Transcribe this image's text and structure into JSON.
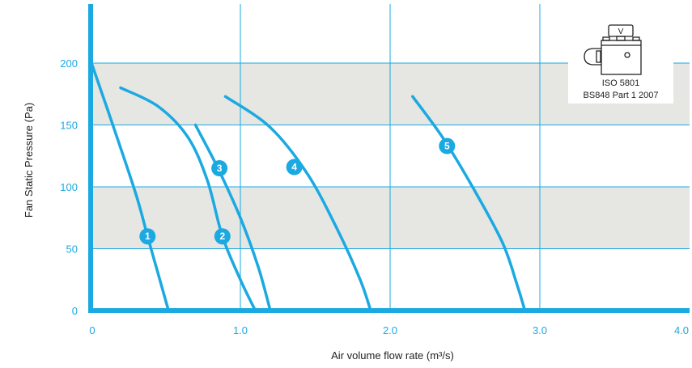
{
  "chart_data": {
    "type": "line",
    "xlabel": "Air volume flow rate (m³/s)",
    "ylabel": "Fan Static Pressure (Pa)",
    "xlim": [
      0,
      4.0
    ],
    "ylim": [
      0,
      250
    ],
    "x_ticks": [
      "0",
      "1.0",
      "2.0",
      "3.0",
      "4.0"
    ],
    "y_ticks": [
      "0",
      "50",
      "100",
      "150",
      "200"
    ],
    "shaded_bands": [
      [
        50,
        100
      ],
      [
        150,
        200
      ]
    ],
    "grid": true,
    "series": [
      {
        "name": "1",
        "points": [
          [
            0.0,
            202
          ],
          [
            0.12,
            160
          ],
          [
            0.3,
            95
          ],
          [
            0.38,
            60
          ],
          [
            0.45,
            30
          ],
          [
            0.52,
            0
          ]
        ],
        "label_at": [
          0.38,
          60
        ]
      },
      {
        "name": "2",
        "points": [
          [
            0.2,
            180
          ],
          [
            0.45,
            165
          ],
          [
            0.65,
            140
          ],
          [
            0.78,
            105
          ],
          [
            0.88,
            60
          ],
          [
            1.0,
            25
          ],
          [
            1.1,
            0
          ]
        ],
        "label_at": [
          0.88,
          60
        ]
      },
      {
        "name": "3",
        "points": [
          [
            0.7,
            150
          ],
          [
            0.85,
            115
          ],
          [
            1.0,
            75
          ],
          [
            1.12,
            35
          ],
          [
            1.2,
            0
          ]
        ],
        "label_at": [
          0.86,
          115
        ]
      },
      {
        "name": "4",
        "points": [
          [
            0.9,
            173
          ],
          [
            1.2,
            148
          ],
          [
            1.45,
            110
          ],
          [
            1.65,
            65
          ],
          [
            1.8,
            25
          ],
          [
            1.87,
            0
          ]
        ],
        "label_at": [
          1.36,
          116
        ]
      },
      {
        "name": "5",
        "points": [
          [
            2.15,
            173
          ],
          [
            2.35,
            140
          ],
          [
            2.55,
            100
          ],
          [
            2.75,
            55
          ],
          [
            2.85,
            20
          ],
          [
            2.9,
            0
          ]
        ],
        "label_at": [
          2.38,
          133
        ]
      }
    ]
  },
  "badge": {
    "valve_letter": "V",
    "line1": "ISO 5801",
    "line2": "BS848 Part 1 2007"
  },
  "colors": {
    "accent": "#1ba9e1",
    "band": "#e6e6e3",
    "axis": "#1ba9e1"
  }
}
